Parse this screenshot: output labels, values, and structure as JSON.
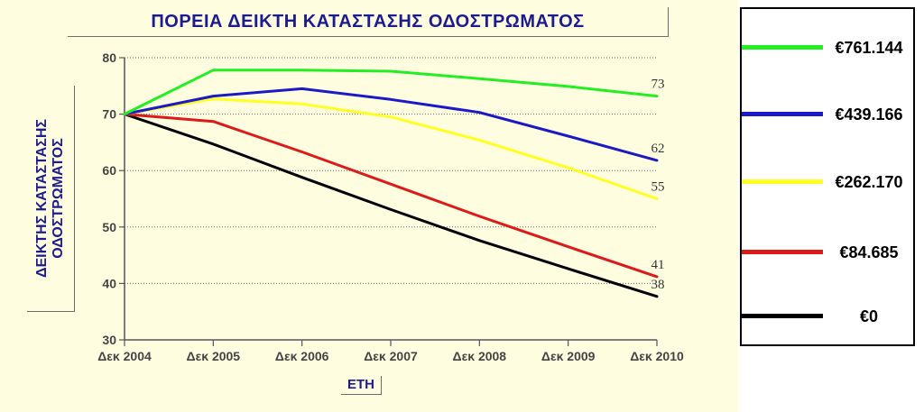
{
  "chart_data": {
    "type": "line",
    "title": "ΠΟΡΕΙΑ ΔΕΙΚΤΗ ΚΑΤΑΣΤΑΣΗΣ ΟΔΟΣΤΡΩΜΑΤΟΣ",
    "ylabel": "ΔΕΙΚΤΗΣ ΚΑΤΑΣΤΑΣΗΣ\nΟΔΟΣΤΡΩΜΑΤΟΣ",
    "xlabel": "ΕΤΗ",
    "categories": [
      "Δεκ 2004",
      "Δεκ 2005",
      "Δεκ 2006",
      "Δεκ 2007",
      "Δεκ 2008",
      "Δεκ 2009",
      "Δεκ 2010"
    ],
    "ylim": [
      30,
      80
    ],
    "yticks": [
      "30",
      "40",
      "50",
      "60",
      "70",
      "80"
    ],
    "grid": "horizontal-dotted",
    "legend_position": "right",
    "series": [
      {
        "name": "€761.144",
        "color": "#22ee22",
        "values": [
          70,
          77.8,
          77.8,
          77.6,
          76.3,
          74.9,
          73.2
        ],
        "end_label": "73"
      },
      {
        "name": "€439.166",
        "color": "#1a1ac8",
        "values": [
          70,
          73.2,
          74.5,
          72.6,
          70.3,
          66.1,
          61.8
        ],
        "end_label": "62"
      },
      {
        "name": "€262.170",
        "color": "#ffff22",
        "values": [
          70,
          72.7,
          71.8,
          69.5,
          65.4,
          60.5,
          55.0
        ],
        "end_label": "55"
      },
      {
        "name": "€84.685",
        "color": "#dd1a1a",
        "values": [
          70,
          68.7,
          63.3,
          57.6,
          51.9,
          46.5,
          41.2
        ],
        "end_label": "41"
      },
      {
        "name": "€0",
        "color": "#000000",
        "values": [
          70,
          64.7,
          58.8,
          53.1,
          47.6,
          42.6,
          37.7
        ],
        "end_label": "38"
      }
    ]
  }
}
